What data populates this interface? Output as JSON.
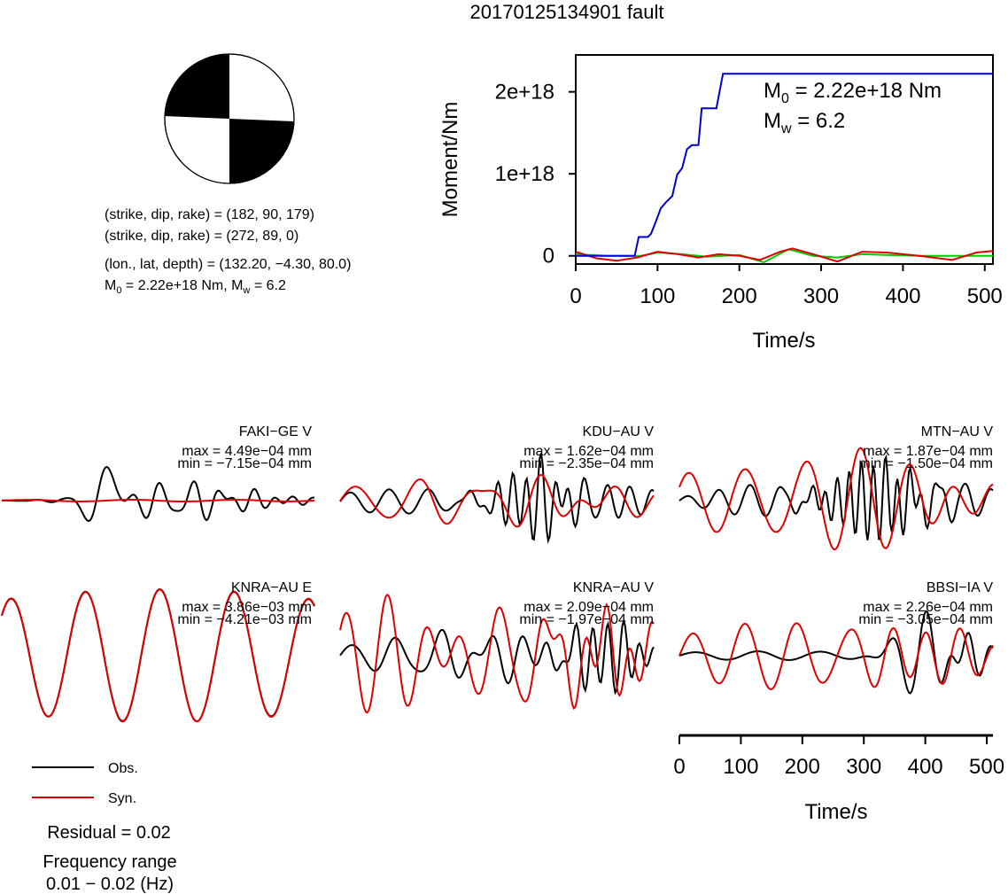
{
  "title": "20170125134901 fault",
  "mechanism": {
    "plane1": "(strike, dip, rake) = (182, 90, 179)",
    "plane2": "(strike, dip, rake) = (272, 89, 0)",
    "location": "(lon., lat, depth) = (132.20, −4.30, 80.0)",
    "moment_prefix": "M",
    "moment_sub": "0",
    "moment_text": " = 2.22e+18 Nm, M",
    "mw_sub": "w",
    "mw_text": " = 6.2"
  },
  "legend": {
    "obs": "Obs.",
    "syn": "Syn."
  },
  "residual": "Residual = 0.02",
  "freq_label": "Frequency range",
  "freq_value": "0.01 − 0.02 (Hz)",
  "colors": {
    "obs": "#000000",
    "syn": "#dd0000",
    "moment": "#0000cc",
    "green": "#00cc00"
  },
  "chart_data": [
    {
      "type": "line",
      "name": "moment-rate",
      "xlabel": "Time/s",
      "ylabel": "Moment/Nm",
      "xlim": [
        0,
        510
      ],
      "ylim": [
        -1e+17,
        2.45e+18
      ],
      "xticks": [
        0,
        100,
        200,
        300,
        400,
        500
      ],
      "yticks": [
        0,
        1e+18,
        2e+18
      ],
      "ytick_labels": [
        "0",
        "1e+18",
        "2e+18"
      ],
      "annotation_m0_prefix": "M",
      "annotation_m0_sub": "0",
      "annotation_m0_text": " = 2.22e+18 Nm",
      "annotation_mw_prefix": "M",
      "annotation_mw_sub": "w",
      "annotation_mw_text": " = 6.2",
      "series": [
        {
          "color": "blue",
          "x": [
            0,
            72,
            77,
            88,
            92,
            98,
            104,
            110,
            118,
            124,
            130,
            136,
            142,
            150,
            154,
            164,
            172,
            180,
            184,
            510
          ],
          "y": [
            0,
            0,
            2.3e+17,
            2.3e+17,
            2.7e+17,
            4.2e+17,
            5.8e+17,
            6.5e+17,
            7.3e+17,
            9.9e+17,
            1.07e+18,
            1.3e+18,
            1.35e+18,
            1.35e+18,
            1.8e+18,
            1.8e+18,
            1.8e+18,
            2.22e+18,
            2.22e+18,
            2.22e+18
          ]
        },
        {
          "color": "green",
          "x": [
            0,
            40,
            80,
            100,
            130,
            160,
            200,
            230,
            260,
            290,
            320,
            350,
            380,
            420,
            460,
            510
          ],
          "y": [
            2e+16,
            0,
            0,
            4e+16,
            2e+16,
            -1e+16,
            1e+16,
            -8e+16,
            8e+16,
            0,
            -2e+16,
            2e+16,
            1e+16,
            0,
            0,
            0
          ]
        },
        {
          "color": "red",
          "x": [
            0,
            25,
            50,
            75,
            100,
            125,
            150,
            175,
            200,
            225,
            250,
            265,
            290,
            320,
            350,
            380,
            420,
            460,
            490,
            510
          ],
          "y": [
            5e+16,
            -3e+16,
            -6e+16,
            -2e+16,
            5e+16,
            2e+16,
            -2e+16,
            2e+16,
            0,
            -5e+16,
            5e+16,
            9e+16,
            2e+16,
            -7e+16,
            5e+16,
            4e+16,
            0,
            -5e+16,
            4e+16,
            6e+16
          ]
        }
      ]
    },
    {
      "type": "line",
      "name": "waveforms",
      "xlabel": "Time/s",
      "xlim": [
        0,
        510
      ],
      "xticks": [
        0,
        100,
        200,
        300,
        400,
        500
      ],
      "stations": [
        {
          "label": "FAKI−GE V",
          "max": "max = 4.49e−04 mm",
          "min": "min = −7.15e−04 mm"
        },
        {
          "label": "KDU−AU V",
          "max": "max = 1.62e−04 mm",
          "min": "min = −2.35e−04 mm"
        },
        {
          "label": "MTN−AU V",
          "max": "max = 1.87e−04 mm",
          "min": "min = −1.50e−04 mm"
        },
        {
          "label": "KNRA−AU E",
          "max": "max = 3.86e−03 mm",
          "min": "min = −4.21e−03 mm"
        },
        {
          "label": "KNRA−AU V",
          "max": "max = 2.09e−04 mm",
          "min": "min = −1.97e−04 mm"
        },
        {
          "label": "BBSI−IA V",
          "max": "max = 2.26e−04 mm",
          "min": "min = −3.05e−04 mm"
        }
      ]
    }
  ]
}
